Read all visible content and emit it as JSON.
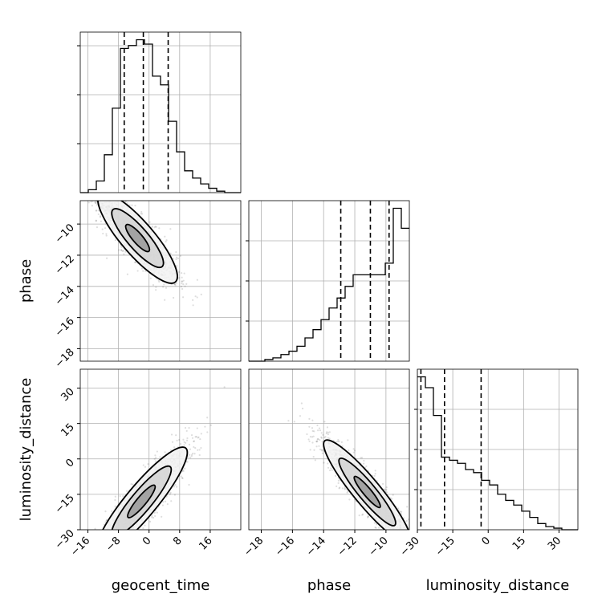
{
  "chart_data": {
    "type": "corner",
    "parameters": [
      "geocent_time",
      "phase",
      "luminosity_distance"
    ],
    "axis_labels": {
      "geocent_time": "geocent_time",
      "phase": "phase",
      "luminosity_distance": "luminosity_distance"
    },
    "ranges": {
      "geocent_time": [
        -18,
        24
      ],
      "phase": [
        -18.8,
        -8.5
      ],
      "luminosity_distance": [
        -30,
        38
      ]
    },
    "ticks": {
      "geocent_time": [
        -16,
        -8,
        0,
        8,
        16
      ],
      "phase": [
        -18,
        -16,
        -14,
        -12,
        -10
      ],
      "luminosity_distance": [
        -30,
        -15,
        0,
        15,
        30
      ]
    },
    "tick_labels": {
      "geocent_time": [
        "−16",
        "−8",
        "0",
        "8",
        "16"
      ],
      "phase": [
        "−18",
        "−16",
        "−14",
        "−12",
        "−10"
      ],
      "luminosity_distance": [
        "−30",
        "−15",
        "0",
        "15",
        "30"
      ]
    },
    "quantiles": {
      "geocent_time": [
        -6.5,
        -1.5,
        5.0
      ],
      "phase": [
        -12.9,
        -11.0,
        -9.8
      ],
      "luminosity_distance": [
        -28.5,
        -18.5,
        -3.0
      ]
    },
    "histograms": {
      "geocent_time": {
        "bin_edges": [
          -18,
          -15.9,
          -13.8,
          -11.7,
          -9.6,
          -7.5,
          -5.4,
          -3.3,
          -1.2,
          0.9,
          3.0,
          5.1,
          7.2,
          9.3,
          11.4,
          13.5,
          15.6,
          17.7,
          19.8,
          21.9,
          24
        ],
        "counts": [
          0,
          2,
          8,
          26,
          58,
          99,
          101,
          105,
          102,
          80,
          74,
          49,
          28,
          15,
          10,
          6,
          3,
          1,
          0,
          0
        ]
      },
      "phase": {
        "bin_edges": [
          -18.8,
          -18.285,
          -17.77,
          -17.255,
          -16.74,
          -16.225,
          -15.71,
          -15.195,
          -14.68,
          -14.165,
          -13.65,
          -13.135,
          -12.62,
          -12.105,
          -11.59,
          -11.075,
          -10.56,
          -10.045,
          -9.53,
          -9.015,
          -8.5
        ],
        "counts": [
          0,
          0,
          1,
          2,
          4,
          6,
          9,
          14,
          19,
          25,
          32,
          38,
          45,
          52,
          52,
          52,
          52,
          59,
          92,
          80
        ]
      },
      "luminosity_distance": {
        "bin_edges": [
          -30,
          -26.6,
          -23.2,
          -19.8,
          -16.4,
          -13,
          -9.6,
          -6.2,
          -2.8,
          0.6,
          4,
          7.4,
          10.8,
          14.2,
          17.6,
          21,
          24.4,
          27.8,
          31.2,
          34.6,
          38
        ],
        "counts": [
          99,
          92,
          74,
          47,
          45,
          43,
          39,
          37,
          32,
          29,
          23,
          19,
          16,
          12,
          8,
          4,
          2,
          1,
          0,
          0
        ]
      }
    },
    "joint_2d": [
      {
        "x": "geocent_time",
        "y": "phase",
        "correlation": -0.85,
        "mean": [
          -3,
          -10.9
        ],
        "sd": [
          5.2,
          1.45
        ],
        "contour_levels": [
          "outer",
          "middle",
          "inner"
        ]
      },
      {
        "x": "geocent_time",
        "y": "luminosity_distance",
        "correlation": 0.9,
        "mean": [
          -2,
          -18
        ],
        "sd": [
          6.0,
          11.5
        ],
        "contour_levels": [
          "outer",
          "middle",
          "inner"
        ]
      },
      {
        "x": "phase",
        "y": "luminosity_distance",
        "correlation": -0.92,
        "mean": [
          -11.2,
          -14
        ],
        "sd": [
          1.4,
          11.0
        ],
        "contour_levels": [
          "outer",
          "middle",
          "inner"
        ]
      }
    ],
    "grid": true,
    "style": {
      "line_color": "#000000",
      "grid_color": "#b0b0b0",
      "background": "#ffffff"
    }
  }
}
